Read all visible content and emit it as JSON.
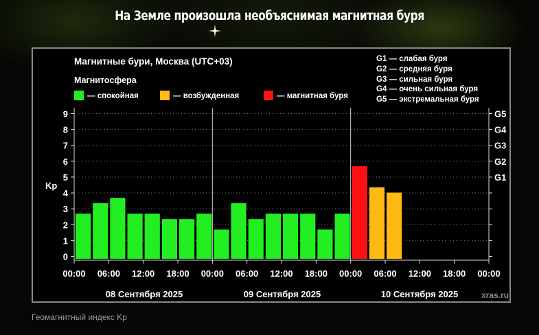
{
  "headline": "На Земле произошла необъяснимая магнитная буря",
  "caption": "Геомагнитный индекс Kp",
  "chart_data": {
    "type": "bar",
    "title": "Магнитные бури, Москва (UTC+03)",
    "legend_title": "Магнитосфера",
    "legend": [
      {
        "key": "calm",
        "label": "— спокойная",
        "color": "#22ee22"
      },
      {
        "key": "excited",
        "label": "— возбужденная",
        "color": "#ffbb11"
      },
      {
        "key": "storm",
        "label": "— магнитная буря",
        "color": "#ff1111"
      }
    ],
    "storm_levels": [
      "G1 — слабая буря",
      "G2 — средняя буря",
      "G3 — сильная буря",
      "G4 — очень сильная буря",
      "G5 — экстремальная буря"
    ],
    "ylabel": "Kp",
    "ylim": [
      0,
      9
    ],
    "yticks": [
      "0",
      "1",
      "2",
      "3",
      "4",
      "5",
      "6",
      "7",
      "8",
      "9"
    ],
    "right_ticks": [
      {
        "value": 5,
        "label": "G1"
      },
      {
        "value": 6,
        "label": "G2"
      },
      {
        "value": 7,
        "label": "G3"
      },
      {
        "value": 8,
        "label": "G4"
      },
      {
        "value": 9,
        "label": "G5"
      }
    ],
    "xticks": [
      "00:00",
      "06:00",
      "12:00",
      "18:00",
      "00:00",
      "06:00",
      "12:00",
      "18:00",
      "00:00",
      "06:00",
      "12:00",
      "18:00",
      "00:00"
    ],
    "days": [
      "08 Сентября 2025",
      "09 Сентября 2025",
      "10 Сентября 2025"
    ],
    "values": [
      2.67,
      3.33,
      3.67,
      2.67,
      2.67,
      2.33,
      2.33,
      2.67,
      1.67,
      3.33,
      2.33,
      2.67,
      2.67,
      2.67,
      1.67,
      2.67,
      5.67,
      4.33,
      4.0
    ],
    "status": [
      "calm",
      "calm",
      "calm",
      "calm",
      "calm",
      "calm",
      "calm",
      "calm",
      "calm",
      "calm",
      "calm",
      "calm",
      "calm",
      "calm",
      "calm",
      "calm",
      "storm",
      "excited",
      "excited"
    ],
    "intervals_total": 24,
    "grid": true,
    "watermark": "xras.ru"
  }
}
